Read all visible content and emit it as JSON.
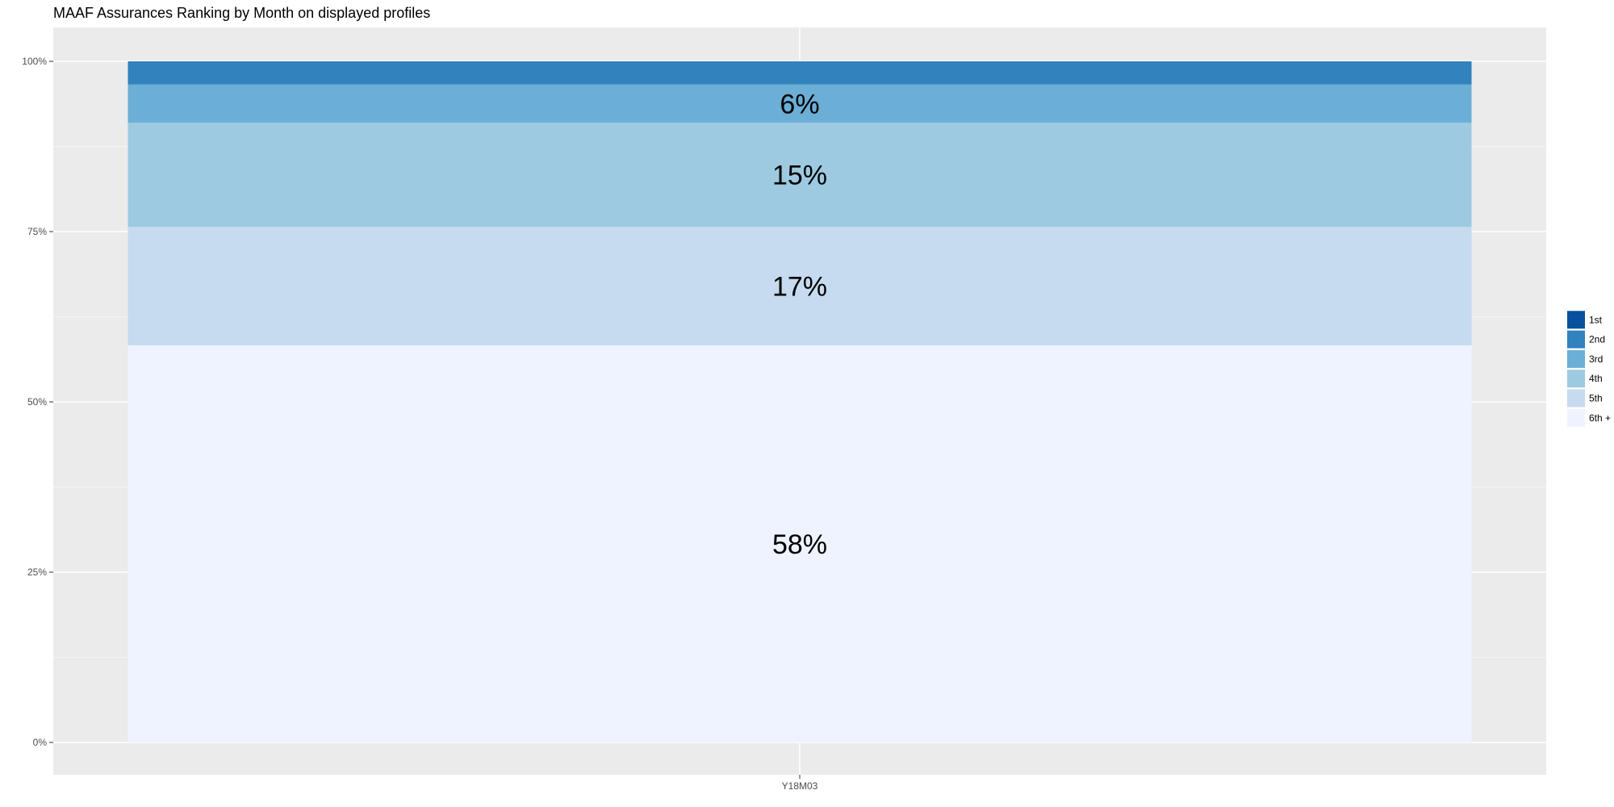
{
  "chart_data": {
    "type": "bar",
    "stacked": true,
    "title": "MAAF Assurances Ranking by Month on displayed profiles",
    "xlabel": "",
    "ylabel": "",
    "categories": [
      "Y18M03"
    ],
    "ylim": [
      0,
      1
    ],
    "y_ticks": [
      0,
      0.25,
      0.5,
      0.75,
      1
    ],
    "y_tick_labels": [
      "0%",
      "25%",
      "50%",
      "75%",
      "100%"
    ],
    "grid": true,
    "legend_position": "right",
    "series": [
      {
        "name": "6th +",
        "values": [
          0.583
        ],
        "label": "58%",
        "color": "#eff3ff"
      },
      {
        "name": "5th",
        "values": [
          0.174
        ],
        "label": "17%",
        "color": "#c6dbef"
      },
      {
        "name": "4th",
        "values": [
          0.153
        ],
        "label": "15%",
        "color": "#9ecae1"
      },
      {
        "name": "3rd",
        "values": [
          0.056
        ],
        "label": "6%",
        "color": "#6baed6"
      },
      {
        "name": "2nd",
        "values": [
          0.034
        ],
        "label": "",
        "color": "#3182bd"
      },
      {
        "name": "1st",
        "values": [
          0.0
        ],
        "label": "",
        "color": "#08519c"
      }
    ],
    "legend_order": [
      "1st",
      "2nd",
      "3rd",
      "4th",
      "5th",
      "6th +"
    ]
  }
}
